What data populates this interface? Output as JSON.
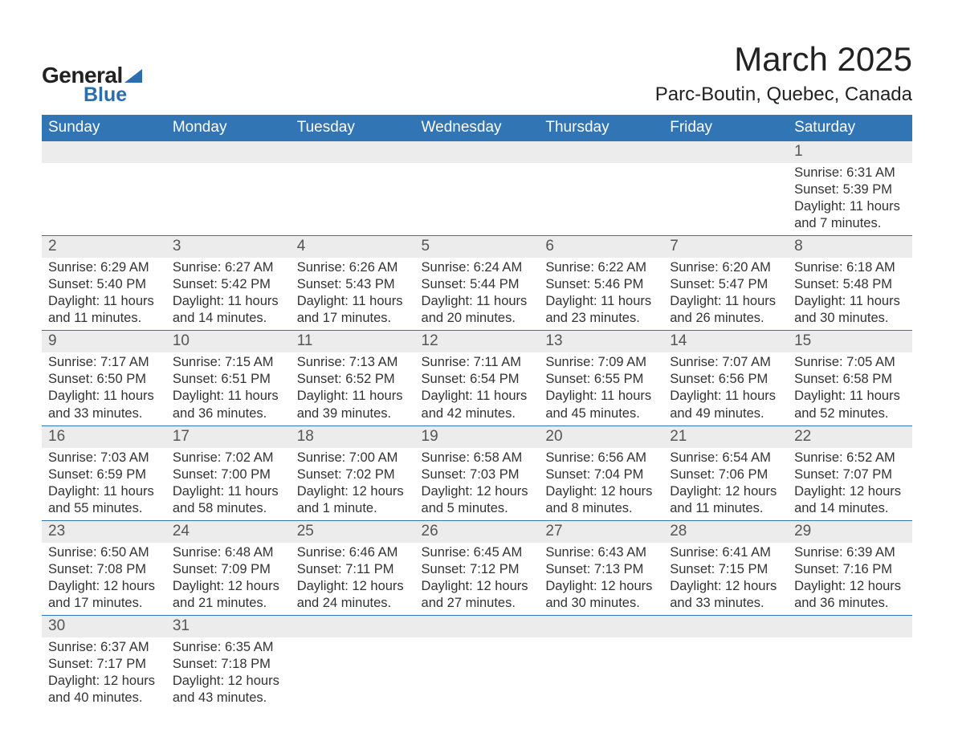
{
  "logo": {
    "general": "General",
    "blue": "Blue"
  },
  "header": {
    "title": "March 2025",
    "location": "Parc-Boutin, Quebec, Canada"
  },
  "colors": {
    "header_bg": "#3275b5",
    "header_text": "#ffffff",
    "daynum_bg": "#ececec",
    "row_border": "#3275b5",
    "logo_accent": "#2a6db0"
  },
  "day_headers": [
    "Sunday",
    "Monday",
    "Tuesday",
    "Wednesday",
    "Thursday",
    "Friday",
    "Saturday"
  ],
  "weeks": [
    [
      null,
      null,
      null,
      null,
      null,
      null,
      {
        "n": "1",
        "sunrise": "Sunrise: 6:31 AM",
        "sunset": "Sunset: 5:39 PM",
        "daylight": "Daylight: 11 hours and 7 minutes."
      }
    ],
    [
      {
        "n": "2",
        "sunrise": "Sunrise: 6:29 AM",
        "sunset": "Sunset: 5:40 PM",
        "daylight": "Daylight: 11 hours and 11 minutes."
      },
      {
        "n": "3",
        "sunrise": "Sunrise: 6:27 AM",
        "sunset": "Sunset: 5:42 PM",
        "daylight": "Daylight: 11 hours and 14 minutes."
      },
      {
        "n": "4",
        "sunrise": "Sunrise: 6:26 AM",
        "sunset": "Sunset: 5:43 PM",
        "daylight": "Daylight: 11 hours and 17 minutes."
      },
      {
        "n": "5",
        "sunrise": "Sunrise: 6:24 AM",
        "sunset": "Sunset: 5:44 PM",
        "daylight": "Daylight: 11 hours and 20 minutes."
      },
      {
        "n": "6",
        "sunrise": "Sunrise: 6:22 AM",
        "sunset": "Sunset: 5:46 PM",
        "daylight": "Daylight: 11 hours and 23 minutes."
      },
      {
        "n": "7",
        "sunrise": "Sunrise: 6:20 AM",
        "sunset": "Sunset: 5:47 PM",
        "daylight": "Daylight: 11 hours and 26 minutes."
      },
      {
        "n": "8",
        "sunrise": "Sunrise: 6:18 AM",
        "sunset": "Sunset: 5:48 PM",
        "daylight": "Daylight: 11 hours and 30 minutes."
      }
    ],
    [
      {
        "n": "9",
        "sunrise": "Sunrise: 7:17 AM",
        "sunset": "Sunset: 6:50 PM",
        "daylight": "Daylight: 11 hours and 33 minutes."
      },
      {
        "n": "10",
        "sunrise": "Sunrise: 7:15 AM",
        "sunset": "Sunset: 6:51 PM",
        "daylight": "Daylight: 11 hours and 36 minutes."
      },
      {
        "n": "11",
        "sunrise": "Sunrise: 7:13 AM",
        "sunset": "Sunset: 6:52 PM",
        "daylight": "Daylight: 11 hours and 39 minutes."
      },
      {
        "n": "12",
        "sunrise": "Sunrise: 7:11 AM",
        "sunset": "Sunset: 6:54 PM",
        "daylight": "Daylight: 11 hours and 42 minutes."
      },
      {
        "n": "13",
        "sunrise": "Sunrise: 7:09 AM",
        "sunset": "Sunset: 6:55 PM",
        "daylight": "Daylight: 11 hours and 45 minutes."
      },
      {
        "n": "14",
        "sunrise": "Sunrise: 7:07 AM",
        "sunset": "Sunset: 6:56 PM",
        "daylight": "Daylight: 11 hours and 49 minutes."
      },
      {
        "n": "15",
        "sunrise": "Sunrise: 7:05 AM",
        "sunset": "Sunset: 6:58 PM",
        "daylight": "Daylight: 11 hours and 52 minutes."
      }
    ],
    [
      {
        "n": "16",
        "sunrise": "Sunrise: 7:03 AM",
        "sunset": "Sunset: 6:59 PM",
        "daylight": "Daylight: 11 hours and 55 minutes."
      },
      {
        "n": "17",
        "sunrise": "Sunrise: 7:02 AM",
        "sunset": "Sunset: 7:00 PM",
        "daylight": "Daylight: 11 hours and 58 minutes."
      },
      {
        "n": "18",
        "sunrise": "Sunrise: 7:00 AM",
        "sunset": "Sunset: 7:02 PM",
        "daylight": "Daylight: 12 hours and 1 minute."
      },
      {
        "n": "19",
        "sunrise": "Sunrise: 6:58 AM",
        "sunset": "Sunset: 7:03 PM",
        "daylight": "Daylight: 12 hours and 5 minutes."
      },
      {
        "n": "20",
        "sunrise": "Sunrise: 6:56 AM",
        "sunset": "Sunset: 7:04 PM",
        "daylight": "Daylight: 12 hours and 8 minutes."
      },
      {
        "n": "21",
        "sunrise": "Sunrise: 6:54 AM",
        "sunset": "Sunset: 7:06 PM",
        "daylight": "Daylight: 12 hours and 11 minutes."
      },
      {
        "n": "22",
        "sunrise": "Sunrise: 6:52 AM",
        "sunset": "Sunset: 7:07 PM",
        "daylight": "Daylight: 12 hours and 14 minutes."
      }
    ],
    [
      {
        "n": "23",
        "sunrise": "Sunrise: 6:50 AM",
        "sunset": "Sunset: 7:08 PM",
        "daylight": "Daylight: 12 hours and 17 minutes."
      },
      {
        "n": "24",
        "sunrise": "Sunrise: 6:48 AM",
        "sunset": "Sunset: 7:09 PM",
        "daylight": "Daylight: 12 hours and 21 minutes."
      },
      {
        "n": "25",
        "sunrise": "Sunrise: 6:46 AM",
        "sunset": "Sunset: 7:11 PM",
        "daylight": "Daylight: 12 hours and 24 minutes."
      },
      {
        "n": "26",
        "sunrise": "Sunrise: 6:45 AM",
        "sunset": "Sunset: 7:12 PM",
        "daylight": "Daylight: 12 hours and 27 minutes."
      },
      {
        "n": "27",
        "sunrise": "Sunrise: 6:43 AM",
        "sunset": "Sunset: 7:13 PM",
        "daylight": "Daylight: 12 hours and 30 minutes."
      },
      {
        "n": "28",
        "sunrise": "Sunrise: 6:41 AM",
        "sunset": "Sunset: 7:15 PM",
        "daylight": "Daylight: 12 hours and 33 minutes."
      },
      {
        "n": "29",
        "sunrise": "Sunrise: 6:39 AM",
        "sunset": "Sunset: 7:16 PM",
        "daylight": "Daylight: 12 hours and 36 minutes."
      }
    ],
    [
      {
        "n": "30",
        "sunrise": "Sunrise: 6:37 AM",
        "sunset": "Sunset: 7:17 PM",
        "daylight": "Daylight: 12 hours and 40 minutes."
      },
      {
        "n": "31",
        "sunrise": "Sunrise: 6:35 AM",
        "sunset": "Sunset: 7:18 PM",
        "daylight": "Daylight: 12 hours and 43 minutes."
      },
      null,
      null,
      null,
      null,
      null
    ]
  ]
}
